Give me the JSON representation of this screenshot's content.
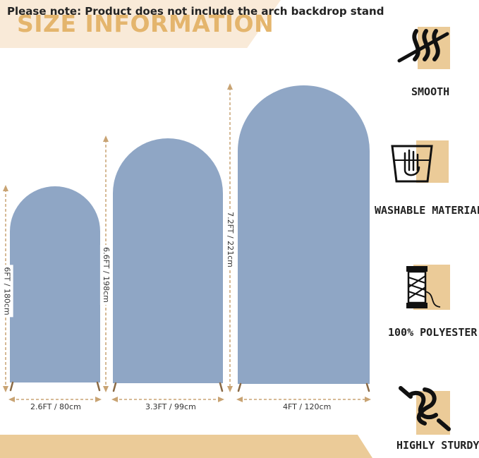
{
  "header": {
    "title": "SIZE INFORMATION"
  },
  "arches": [
    {
      "height_label": "6FT / 180cm",
      "width_label": "2.6FT / 80cm"
    },
    {
      "height_label": "6.6FT / 198cm",
      "width_label": "3.3FT / 99cm"
    },
    {
      "height_label": "7.2FT / 221cm",
      "width_label": "4FT / 120cm"
    }
  ],
  "arch_color": "#8fa6c5",
  "accent_color": "#ebcb98",
  "features": [
    {
      "label": "SMOOTH",
      "icon": "smooth-icon"
    },
    {
      "label": "WASHABLE MATERIAL",
      "icon": "washable-icon"
    },
    {
      "label": "100% POLYESTER",
      "icon": "polyester-icon"
    },
    {
      "label": "HIGHLY STURDY",
      "icon": "sturdy-icon"
    }
  ],
  "note": {
    "text": "Please note: Product does not include the arch backdrop stand"
  }
}
